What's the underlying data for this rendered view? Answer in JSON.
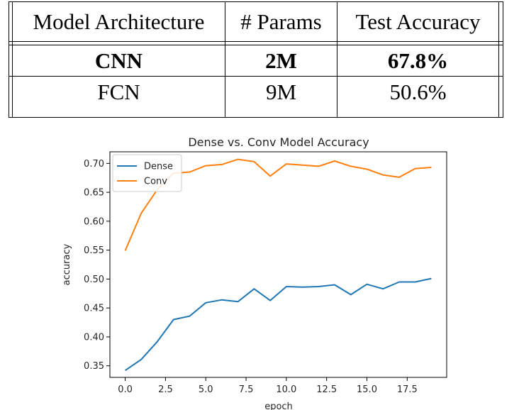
{
  "table": {
    "headers": [
      "Model Architecture",
      "# Params",
      "Test Accuracy"
    ],
    "rows": [
      {
        "model": "CNN",
        "params": "2M",
        "accuracy": "67.8%",
        "bold": true
      },
      {
        "model": "FCN",
        "params": "9M",
        "accuracy": "50.6%",
        "bold": false
      }
    ]
  },
  "chart_data": {
    "type": "line",
    "title": "Dense vs. Conv Model Accuracy",
    "xlabel": "epoch",
    "ylabel": "accuracy",
    "xlim": [
      -0.95,
      19.95
    ],
    "ylim": [
      0.33,
      0.72
    ],
    "xticks": [
      0,
      2.5,
      5,
      7.5,
      10,
      12.5,
      15,
      17.5
    ],
    "xtick_labels": [
      "0.0",
      "2.5",
      "5.0",
      "7.5",
      "10.0",
      "12.5",
      "15.0",
      "17.5"
    ],
    "yticks": [
      0.35,
      0.4,
      0.45,
      0.5,
      0.55,
      0.6,
      0.65,
      0.7
    ],
    "ytick_labels": [
      "0.35",
      "0.40",
      "0.45",
      "0.50",
      "0.55",
      "0.60",
      "0.65",
      "0.70"
    ],
    "grid": false,
    "legend_position": "top-left",
    "x": [
      0,
      1,
      2,
      3,
      4,
      5,
      6,
      7,
      8,
      9,
      10,
      11,
      12,
      13,
      14,
      15,
      16,
      17,
      18,
      19
    ],
    "series": [
      {
        "name": "Dense",
        "color": "#1f77b4",
        "values": [
          0.342,
          0.361,
          0.392,
          0.43,
          0.436,
          0.459,
          0.464,
          0.461,
          0.483,
          0.463,
          0.487,
          0.486,
          0.487,
          0.49,
          0.473,
          0.491,
          0.483,
          0.495,
          0.495,
          0.501
        ]
      },
      {
        "name": "Conv",
        "color": "#ff7f0e",
        "values": [
          0.549,
          0.614,
          0.655,
          0.683,
          0.685,
          0.696,
          0.698,
          0.707,
          0.703,
          0.678,
          0.699,
          0.697,
          0.695,
          0.704,
          0.695,
          0.69,
          0.68,
          0.676,
          0.691,
          0.693
        ]
      }
    ]
  }
}
